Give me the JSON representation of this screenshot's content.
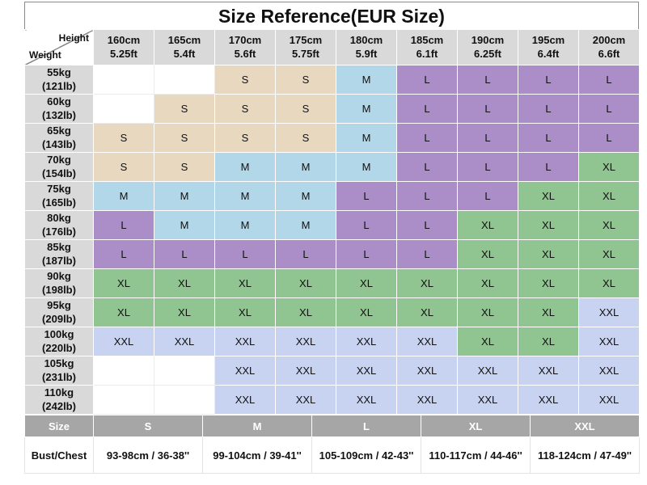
{
  "title": "Size Reference(EUR Size)",
  "corner": {
    "top": "Height",
    "bottom": "Weight"
  },
  "columns": [
    {
      "cm": "160cm",
      "ft": "5.25ft"
    },
    {
      "cm": "165cm",
      "ft": "5.4ft"
    },
    {
      "cm": "170cm",
      "ft": "5.6ft"
    },
    {
      "cm": "175cm",
      "ft": "5.75ft"
    },
    {
      "cm": "180cm",
      "ft": "5.9ft"
    },
    {
      "cm": "185cm",
      "ft": "6.1ft"
    },
    {
      "cm": "190cm",
      "ft": "6.25ft"
    },
    {
      "cm": "195cm",
      "ft": "6.4ft"
    },
    {
      "cm": "200cm",
      "ft": "6.6ft"
    }
  ],
  "rows": [
    {
      "kg": "55kg",
      "lb": "(121lb)"
    },
    {
      "kg": "60kg",
      "lb": "(132lb)"
    },
    {
      "kg": "65kg",
      "lb": "(143lb)"
    },
    {
      "kg": "70kg",
      "lb": "(154lb)"
    },
    {
      "kg": "75kg",
      "lb": "(165lb)"
    },
    {
      "kg": "80kg",
      "lb": "(176lb)"
    },
    {
      "kg": "85kg",
      "lb": "(187lb)"
    },
    {
      "kg": "90kg",
      "lb": "(198lb)"
    },
    {
      "kg": "95kg",
      "lb": "(209lb)"
    },
    {
      "kg": "100kg",
      "lb": "(220lb)"
    },
    {
      "kg": "105kg",
      "lb": "(231lb)"
    },
    {
      "kg": "110kg",
      "lb": "(242lb)"
    }
  ],
  "grid": [
    [
      "",
      "",
      "S",
      "S",
      "M",
      "L",
      "L",
      "L",
      "L"
    ],
    [
      "",
      "S",
      "S",
      "S",
      "M",
      "L",
      "L",
      "L",
      "L"
    ],
    [
      "S",
      "S",
      "S",
      "S",
      "M",
      "L",
      "L",
      "L",
      "L"
    ],
    [
      "S",
      "S",
      "M",
      "M",
      "M",
      "L",
      "L",
      "L",
      "XL"
    ],
    [
      "M",
      "M",
      "M",
      "M",
      "L",
      "L",
      "L",
      "XL",
      "XL"
    ],
    [
      "L",
      "M",
      "M",
      "M",
      "L",
      "L",
      "XL",
      "XL",
      "XL"
    ],
    [
      "L",
      "L",
      "L",
      "L",
      "L",
      "L",
      "XL",
      "XL",
      "XL"
    ],
    [
      "XL",
      "XL",
      "XL",
      "XL",
      "XL",
      "XL",
      "XL",
      "XL",
      "XL"
    ],
    [
      "XL",
      "XL",
      "XL",
      "XL",
      "XL",
      "XL",
      "XL",
      "XL",
      "XXL"
    ],
    [
      "XXL",
      "XXL",
      "XXL",
      "XXL",
      "XXL",
      "XXL",
      "XL",
      "XL",
      "XXL"
    ],
    [
      "",
      "",
      "XXL",
      "XXL",
      "XXL",
      "XXL",
      "XXL",
      "XXL",
      "XXL"
    ],
    [
      "",
      "",
      "XXL",
      "XXL",
      "XXL",
      "XXL",
      "XXL",
      "XXL",
      "XXL"
    ]
  ],
  "size_colors": {
    "S": "#e9d8c0",
    "M": "#b2d7e9",
    "L": "#ab8ec8",
    "XL": "#90c591",
    "XXL": "#c8d3f2"
  },
  "header_bg": "#d9d9d9",
  "footer_header_bg": "#a6a6a6",
  "footer": {
    "size_label": "Size",
    "sizes": [
      "S",
      "M",
      "L",
      "XL",
      "XXL"
    ],
    "bust_label": "Bust/Chest",
    "bust_values": [
      "93-98cm / 36-38''",
      "99-104cm / 39-41''",
      "105-109cm / 42-43''",
      "110-117cm / 44-46''",
      "118-124cm / 47-49''"
    ]
  }
}
